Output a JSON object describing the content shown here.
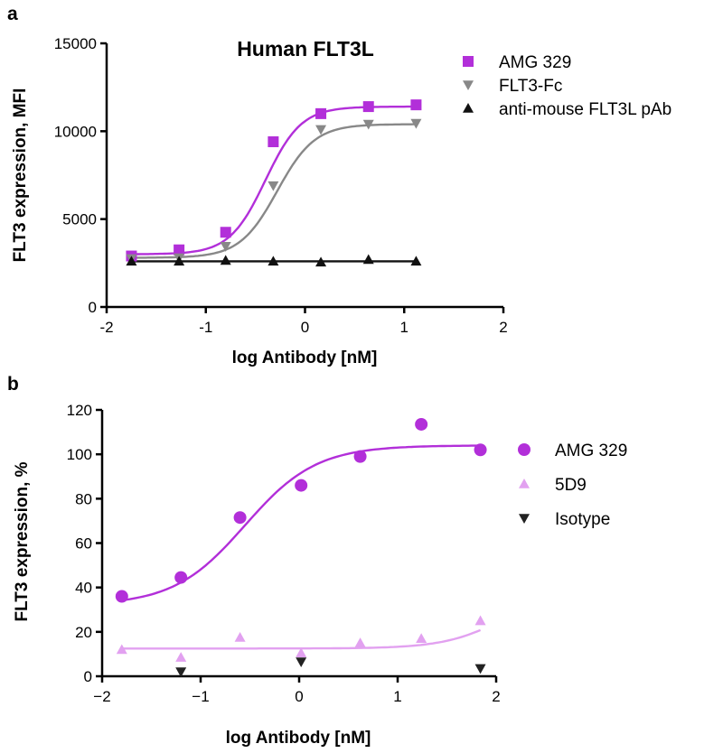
{
  "chart_data": [
    {
      "panel": "a",
      "type": "scatter",
      "title": "Human FLT3L",
      "xlabel": "log Antibody [nM]",
      "ylabel": "FLT3 expression, MFI",
      "xlim": [
        -2,
        2
      ],
      "ylim": [
        0,
        15000
      ],
      "xticks": [
        -2,
        -1,
        0,
        1,
        2
      ],
      "yticks": [
        0,
        5000,
        10000,
        15000
      ],
      "xtick_labels": [
        "-2",
        "-1",
        "0",
        "1",
        "2"
      ],
      "ytick_labels": [
        "0",
        "5000",
        "10000",
        "15000"
      ],
      "legend_position": "top-right",
      "series": [
        {
          "name": "AMG 329",
          "marker": "square",
          "color": "#b22fd9",
          "x": [
            -1.75,
            -1.27,
            -0.8,
            -0.32,
            0.16,
            0.64,
            1.12
          ],
          "y": [
            2900,
            3250,
            4250,
            9400,
            11000,
            11400,
            11500
          ],
          "fit": {
            "bottom": 3000,
            "top": 11400,
            "logEC50": -0.4,
            "hill": 2.4
          }
        },
        {
          "name": "FLT3-Fc",
          "marker": "triangle-down",
          "color": "#888888",
          "x": [
            -1.75,
            -1.27,
            -0.8,
            -0.32,
            0.16,
            0.64,
            1.12
          ],
          "y": [
            2750,
            2800,
            3450,
            6900,
            10100,
            10400,
            10450
          ],
          "fit": {
            "bottom": 2800,
            "top": 10400,
            "logEC50": -0.28,
            "hill": 2.3
          }
        },
        {
          "name": "anti-mouse FLT3L pAb",
          "marker": "triangle-up",
          "color": "#111111",
          "x": [
            -1.75,
            -1.27,
            -0.8,
            -0.32,
            0.16,
            0.64,
            1.12
          ],
          "y": [
            2600,
            2600,
            2650,
            2600,
            2550,
            2700,
            2600
          ],
          "fit": {
            "bottom": 2600,
            "top": 2600,
            "logEC50": 0,
            "hill": 1
          }
        }
      ]
    },
    {
      "panel": "b",
      "type": "scatter",
      "title": "",
      "xlabel": "log Antibody [nM]",
      "ylabel": "FLT3 expression, %",
      "xlim": [
        -2,
        2
      ],
      "ylim": [
        0,
        120
      ],
      "xticks": [
        -2,
        -1,
        0,
        1,
        2
      ],
      "yticks": [
        0,
        20,
        40,
        60,
        80,
        100,
        120
      ],
      "xtick_labels": [
        "−2",
        "−1",
        "0",
        "1",
        "2"
      ],
      "ytick_labels": [
        "0",
        "20",
        "40",
        "60",
        "80",
        "100",
        "120"
      ],
      "legend_position": "right",
      "series": [
        {
          "name": "AMG 329",
          "marker": "circle",
          "color": "#b22fd9",
          "x": [
            -1.8,
            -1.2,
            -0.6,
            0.02,
            0.62,
            1.24,
            1.84
          ],
          "y": [
            36,
            44.5,
            71.5,
            86,
            99,
            113.5,
            102
          ],
          "fit": {
            "bottom": 32,
            "top": 104,
            "logEC50": -0.55,
            "hill": 1.2
          }
        },
        {
          "name": "5D9",
          "marker": "triangle-up",
          "color": "#e2a1f0",
          "x": [
            -1.8,
            -1.2,
            -0.6,
            0.02,
            0.62,
            1.24,
            1.84
          ],
          "y": [
            12,
            8.5,
            17.5,
            10.5,
            15,
            17,
            25
          ],
          "fit": {
            "bottom": 12.5,
            "top": 40,
            "logEC50": 2.1,
            "hill": 1.4
          }
        },
        {
          "name": "Isotype",
          "marker": "triangle-down",
          "color": "#222222",
          "x": [
            -1.2,
            0.02,
            1.84
          ],
          "y": [
            2,
            6.5,
            3.5
          ],
          "fit": null
        }
      ]
    }
  ]
}
